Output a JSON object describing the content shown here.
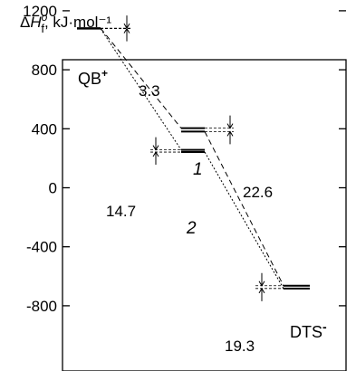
{
  "chart_data": {
    "type": "energy-level-diagram",
    "ylabel": {
      "prefix": "Δ",
      "symbol": "H",
      "superscript": "o",
      "subscript": "f",
      "unit": ", kJ·mol⁻¹"
    },
    "ylim": [
      -800,
      1250
    ],
    "yticks": [
      -800,
      -400,
      0,
      400,
      800,
      1200
    ],
    "ytick_labels": [
      "-800",
      "-400",
      "0",
      "400",
      "800",
      "1200"
    ],
    "levels": [
      {
        "name": "QB",
        "charge": "+",
        "y": [
          1082,
          1079
        ],
        "split": "3.3"
      },
      {
        "name": "1",
        "y": [
          404,
          381
        ],
        "split": "22.6"
      },
      {
        "name": "2",
        "y": [
          257,
          242
        ],
        "split": "14.7"
      },
      {
        "name": "DTS",
        "charge": "-",
        "y": [
          -664,
          -683
        ],
        "split": "19.3"
      }
    ],
    "paths": [
      {
        "name": "1",
        "style": "dashed",
        "through": [
          "QB",
          "1",
          "DTS"
        ]
      },
      {
        "name": "2",
        "style": "dotted",
        "through": [
          "QB",
          "2",
          "DTS"
        ]
      }
    ]
  }
}
